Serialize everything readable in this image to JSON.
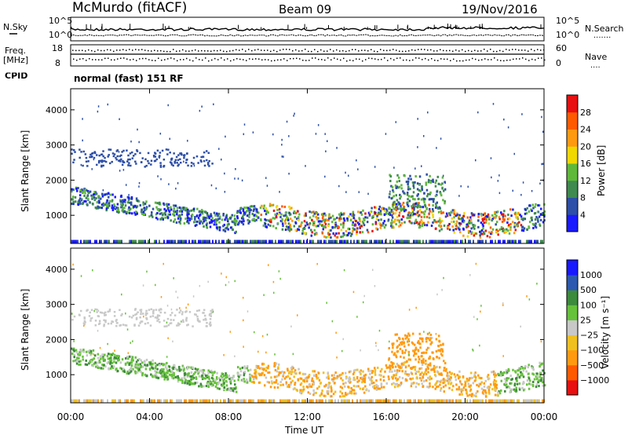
{
  "header": {
    "station": "McMurdo (fitACF)",
    "beam": "Beam 09",
    "date": "19/Nov/2016"
  },
  "noise_panel": {
    "left_label": "N.Sky",
    "right_label": "N.Search",
    "right_dots": ".......",
    "left_ticks": [
      "10^5",
      "10^0"
    ],
    "right_ticks": [
      "10^5",
      "10^0"
    ]
  },
  "freq_panel": {
    "left_label_1": "Freq.",
    "left_label_2": "[MHz]",
    "right_label": "Nave",
    "right_dots": "....",
    "left_ticks": [
      "18",
      "8"
    ],
    "right_ticks": [
      "60",
      "0"
    ]
  },
  "cpid": {
    "label": "CPID",
    "value": "normal (fast) 151 RF"
  },
  "chart_data": [
    {
      "type": "heatmap",
      "title": "",
      "ylabel": "Slant Range [km]",
      "xlabel": "",
      "ylim": [
        200,
        4600
      ],
      "yticks": [
        "1000",
        "2000",
        "3000",
        "4000"
      ],
      "colorbar_label": "Power [dB]",
      "colorbar_ticks": [
        "4",
        "8",
        "12",
        "16",
        "20",
        "24",
        "28"
      ],
      "colors": [
        "#1a1aff",
        "#2d4fa8",
        "#3f8a4f",
        "#5fb83a",
        "#f0d800",
        "#ff9a10",
        "#ff5a00",
        "#e81010"
      ]
    },
    {
      "type": "heatmap",
      "title": "",
      "ylabel": "Slant Range [km]",
      "xlabel": "Time UT",
      "ylim": [
        200,
        4600
      ],
      "yticks": [
        "1000",
        "2000",
        "3000",
        "4000"
      ],
      "xticks": [
        "00:00",
        "04:00",
        "08:00",
        "12:00",
        "16:00",
        "20:00",
        "00:00"
      ],
      "colorbar_label": "Velocity [m s⁻¹]",
      "colorbar_ticks": [
        "1000",
        "500",
        "100",
        "25",
        "−25",
        "−100",
        "−500",
        "−1000"
      ],
      "colors": [
        "#1a1aff",
        "#2d5ab0",
        "#3c8a3c",
        "#66c23a",
        "#c8c8c8",
        "#f0c020",
        "#ff9a10",
        "#ff5a00",
        "#e81010"
      ]
    }
  ]
}
